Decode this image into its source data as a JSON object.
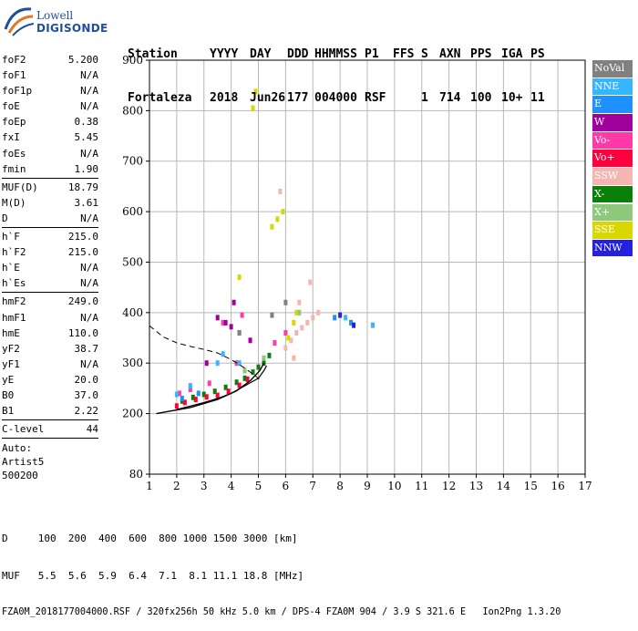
{
  "logo": {
    "line1": "Lowell",
    "line2": "DIGISONDE"
  },
  "header": {
    "row1": [
      "Station",
      "YYYY",
      "DAY",
      "DDD",
      "HHMMSS",
      "P1",
      "FFS",
      "S",
      "AXN",
      "PPS",
      "IGA",
      "PS"
    ],
    "row2": [
      "Fortaleza",
      "2018",
      "Jun26",
      "177",
      "004000",
      "RSF",
      "",
      "1",
      "714",
      "100",
      "10+",
      "11"
    ]
  },
  "params": [
    {
      "name": "foF2",
      "value": "5.200"
    },
    {
      "name": "foF1",
      "value": "N/A"
    },
    {
      "name": "foF1p",
      "value": "N/A"
    },
    {
      "name": "foE",
      "value": "N/A"
    },
    {
      "name": "foEp",
      "value": "0.38"
    },
    {
      "name": "fxI",
      "value": "5.45"
    },
    {
      "name": "foEs",
      "value": "N/A"
    },
    {
      "name": "fmin",
      "value": "1.90"
    },
    {
      "sep": true
    },
    {
      "name": "MUF(D)",
      "value": "18.79"
    },
    {
      "name": "M(D)",
      "value": "3.61"
    },
    {
      "name": "D",
      "value": "N/A"
    },
    {
      "sep": true
    },
    {
      "name": "h`F",
      "value": "215.0"
    },
    {
      "name": "h`F2",
      "value": "215.0"
    },
    {
      "name": "h`E",
      "value": "N/A"
    },
    {
      "name": "h`Es",
      "value": "N/A"
    },
    {
      "sep": true
    },
    {
      "name": "hmF2",
      "value": "249.0"
    },
    {
      "name": "hmF1",
      "value": "N/A"
    },
    {
      "name": "hmE",
      "value": "110.0"
    },
    {
      "name": "yF2",
      "value": "38.7"
    },
    {
      "name": "yF1",
      "value": "N/A"
    },
    {
      "name": "yE",
      "value": "20.0"
    },
    {
      "name": "B0",
      "value": "37.0"
    },
    {
      "name": "B1",
      "value": "2.22"
    },
    {
      "sep": true
    },
    {
      "name": "C-level",
      "value": "44"
    },
    {
      "sep": true
    }
  ],
  "auto": {
    "label": "Auto:",
    "artist": "Artist5",
    "code": "500200"
  },
  "legend": [
    {
      "label": "NoVal",
      "color": "#808080"
    },
    {
      "label": "NNE",
      "color": "#35b6ff"
    },
    {
      "label": "E",
      "color": "#1e90ff"
    },
    {
      "label": "W",
      "color": "#a0009b"
    },
    {
      "label": "Vo-",
      "color": "#ff3aa6"
    },
    {
      "label": "Vo+",
      "color": "#ff003c"
    },
    {
      "label": "SSW",
      "color": "#f5b5b1"
    },
    {
      "label": "X-",
      "color": "#0a7f0a"
    },
    {
      "label": "X+",
      "color": "#8cc97a"
    },
    {
      "label": "SSE",
      "color": "#d8d800"
    },
    {
      "label": "NNW",
      "color": "#2420e0"
    }
  ],
  "footer": {
    "line1": "D     100  200  400  600  800 1000 1500 3000 [km]",
    "line2": "MUF   5.5  5.6  5.9  6.4  7.1  8.1 11.1 18.8 [MHz]",
    "line3": "FZA0M_2018177004000.RSF / 320fx256h 50 kHz 5.0 km / DPS-4 FZA0M 904 / 3.9 S 321.6 E   Ion2Png 1.3.20"
  },
  "chart_data": {
    "type": "scatter",
    "xlim": [
      1,
      17
    ],
    "ylim": [
      80,
      900
    ],
    "xticks": [
      1,
      2,
      3,
      4,
      5,
      6,
      7,
      8,
      9,
      10,
      11,
      12,
      13,
      14,
      15,
      16,
      17
    ],
    "yticks": [
      80,
      200,
      300,
      400,
      500,
      600,
      700,
      800,
      900
    ],
    "grid": true,
    "curves": {
      "profile": [
        [
          1.25,
          200
        ],
        [
          2.5,
          212
        ],
        [
          3.5,
          228
        ],
        [
          4.2,
          245
        ],
        [
          4.7,
          265
        ],
        [
          5.05,
          285
        ],
        [
          5.2,
          300
        ]
      ],
      "trace_lower": [
        [
          2.0,
          208
        ],
        [
          2.5,
          215
        ],
        [
          3.0,
          222
        ],
        [
          3.5,
          230
        ],
        [
          4.0,
          240
        ],
        [
          4.5,
          255
        ],
        [
          5.0,
          270
        ],
        [
          5.2,
          285
        ],
        [
          5.3,
          295
        ]
      ],
      "dashed_upper": [
        [
          1.0,
          374
        ],
        [
          1.5,
          352
        ],
        [
          2.0,
          340
        ],
        [
          2.5,
          333
        ],
        [
          3.0,
          327
        ],
        [
          3.5,
          320
        ],
        [
          4.0,
          307
        ],
        [
          4.5,
          290
        ],
        [
          5.0,
          270
        ],
        [
          5.1,
          262
        ]
      ]
    },
    "series": [
      {
        "name": "X-",
        "color": "#0a7f0a",
        "points": [
          [
            2.2,
            225
          ],
          [
            2.6,
            232
          ],
          [
            3.0,
            238
          ],
          [
            3.4,
            244
          ],
          [
            3.8,
            252
          ],
          [
            4.2,
            262
          ],
          [
            4.5,
            270
          ],
          [
            4.8,
            282
          ],
          [
            5.0,
            292
          ],
          [
            5.2,
            300
          ],
          [
            5.4,
            315
          ]
        ]
      },
      {
        "name": "Vo+",
        "color": "#ff003c",
        "points": [
          [
            2.0,
            215
          ],
          [
            2.3,
            222
          ],
          [
            2.7,
            228
          ],
          [
            3.1,
            233
          ],
          [
            3.5,
            236
          ],
          [
            3.9,
            244
          ],
          [
            4.3,
            256
          ],
          [
            4.6,
            268
          ]
        ]
      },
      {
        "name": "Vo-",
        "color": "#ff3aa6",
        "points": [
          [
            2.1,
            240
          ],
          [
            2.5,
            248
          ],
          [
            3.2,
            260
          ],
          [
            3.7,
            380
          ],
          [
            4.2,
            300
          ],
          [
            4.4,
            395
          ],
          [
            5.6,
            340
          ],
          [
            6.0,
            360
          ]
        ]
      },
      {
        "name": "W",
        "color": "#a0009b",
        "points": [
          [
            3.5,
            390
          ],
          [
            3.8,
            380
          ],
          [
            4.0,
            372
          ],
          [
            4.3,
            360
          ],
          [
            4.7,
            345
          ],
          [
            3.1,
            300
          ],
          [
            4.1,
            420
          ]
        ]
      },
      {
        "name": "SSW",
        "color": "#f5b5b1",
        "points": [
          [
            6.0,
            330
          ],
          [
            6.2,
            345
          ],
          [
            6.4,
            360
          ],
          [
            6.6,
            370
          ],
          [
            6.8,
            380
          ],
          [
            7.0,
            390
          ],
          [
            7.2,
            400
          ],
          [
            6.5,
            420
          ],
          [
            6.9,
            460
          ],
          [
            6.3,
            310
          ],
          [
            5.8,
            640
          ]
        ]
      },
      {
        "name": "SSE",
        "color": "#d8d800",
        "points": [
          [
            5.5,
            570
          ],
          [
            5.7,
            585
          ],
          [
            5.9,
            600
          ],
          [
            6.1,
            350
          ],
          [
            6.3,
            380
          ],
          [
            6.4,
            400
          ],
          [
            4.3,
            470
          ],
          [
            4.8,
            805
          ],
          [
            4.9,
            838
          ]
        ]
      },
      {
        "name": "NNE",
        "color": "#35b6ff",
        "points": [
          [
            2.0,
            238
          ],
          [
            2.5,
            255
          ],
          [
            3.5,
            300
          ],
          [
            3.7,
            318
          ],
          [
            4.3,
            300
          ],
          [
            8.2,
            390
          ],
          [
            9.2,
            375
          ]
        ]
      },
      {
        "name": "E",
        "color": "#1e90ff",
        "points": [
          [
            2.2,
            230
          ],
          [
            2.8,
            240
          ],
          [
            7.8,
            390
          ],
          [
            8.4,
            380
          ]
        ]
      },
      {
        "name": "X+",
        "color": "#8cc97a",
        "points": [
          [
            4.5,
            285
          ],
          [
            5.2,
            310
          ],
          [
            6.5,
            400
          ]
        ]
      },
      {
        "name": "NNW",
        "color": "#2420e0",
        "points": [
          [
            8.5,
            375
          ],
          [
            8.0,
            395
          ]
        ]
      },
      {
        "name": "NoVal",
        "color": "#808080",
        "points": [
          [
            4.3,
            360
          ],
          [
            5.5,
            395
          ],
          [
            6.0,
            420
          ]
        ]
      }
    ]
  }
}
